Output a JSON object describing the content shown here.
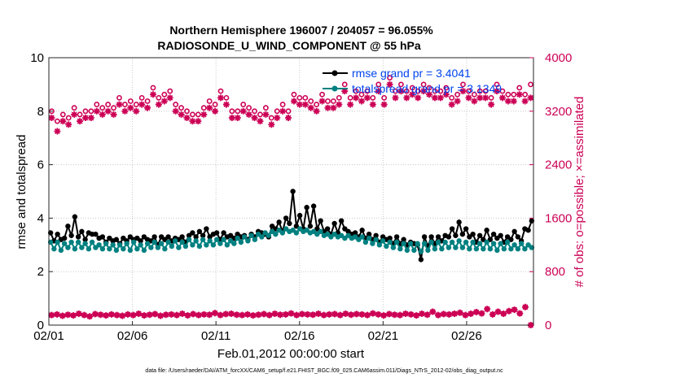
{
  "chart_data": {
    "type": "line",
    "title_line1": "Northern Hemisphere 196007 / 204057 = 96.055%",
    "title_line2": "RADIOSONDE_U_WIND_COMPONENT @ 55 hPa",
    "xlabel": "Feb.01,2012 00:00:00 start",
    "ylabel_left": "rmse and totalspread",
    "ylabel_right": "# of obs: o=possible; ×=assimilated",
    "footer": "data file: /Users/raeder/DAI/ATM_forcXX/CAM6_setup/f.e21.FHIST_BGC.f09_025.CAM6assim.011/Diags_NTrS_2012-02/obs_diag_output.nc",
    "x_ticks": [
      "02/01",
      "02/06",
      "02/11",
      "02/16",
      "02/21",
      "02/26"
    ],
    "x_tick_days": [
      0,
      5,
      10,
      15,
      20,
      25
    ],
    "xlim": [
      0,
      29
    ],
    "ylim_left": [
      0,
      10
    ],
    "yticks_left": [
      "0",
      "2",
      "4",
      "6",
      "8",
      "10"
    ],
    "ylim_right": [
      0,
      4000
    ],
    "yticks_right": [
      "0",
      "800",
      "1600",
      "2400",
      "3200",
      "4000"
    ],
    "legend": [
      {
        "name": "rmse grand pr = 3.4041",
        "color": "#000000"
      },
      {
        "name": "totalspread grand pr = 3.1349",
        "color": "#008080"
      }
    ],
    "colors": {
      "rmse": "#000000",
      "spread": "#008080",
      "obs": "#cc0055"
    },
    "series": [
      {
        "name": "rmse",
        "axis": "left",
        "marker": "dot",
        "values": [
          3.45,
          3.15,
          3.4,
          3.2,
          3.25,
          3.7,
          3.35,
          4.05,
          3.3,
          3.5,
          3.2,
          3.45,
          3.4,
          3.4,
          3.25,
          3.3,
          3.1,
          3.25,
          3.15,
          3.2,
          3.05,
          3.25,
          3.15,
          3.3,
          3.2,
          3.25,
          3.15,
          3.3,
          3.2,
          3.15,
          3.3,
          3.0,
          3.3,
          3.2,
          3.3,
          3.15,
          3.25,
          3.2,
          3.3,
          3.1,
          3.35,
          3.45,
          3.3,
          3.5,
          3.35,
          3.6,
          3.3,
          3.4,
          3.45,
          3.2,
          3.45,
          3.3,
          3.35,
          3.25,
          3.4,
          3.3,
          3.35,
          3.2,
          3.4,
          3.3,
          3.5,
          3.45,
          3.4,
          3.3,
          3.7,
          3.6,
          3.85,
          3.5,
          4.0,
          3.8,
          5.0,
          3.7,
          4.1,
          3.6,
          4.4,
          3.7,
          4.45,
          3.6,
          3.9,
          3.5,
          3.6,
          3.4,
          3.8,
          3.45,
          3.9,
          3.6,
          3.5,
          3.4,
          3.45,
          3.3,
          3.55,
          3.25,
          3.4,
          3.2,
          3.35,
          3.1,
          3.3,
          3.2,
          3.25,
          3.05,
          3.3,
          3.05,
          3.2,
          3.0,
          3.1,
          3.05,
          3.0,
          2.45,
          3.3,
          2.95,
          3.3,
          3.05,
          3.3,
          3.15,
          3.35,
          3.3,
          3.6,
          3.35,
          3.85,
          3.4,
          3.6,
          3.3,
          3.4,
          3.1,
          3.35,
          3.2,
          3.55,
          3.2,
          3.4,
          3.25,
          3.35,
          3.1,
          3.3,
          3.2,
          3.5,
          3.3,
          3.15,
          3.6,
          3.55,
          3.9
        ]
      },
      {
        "name": "totalspread",
        "axis": "left",
        "marker": "dot",
        "values": [
          3.1,
          2.85,
          3.1,
          2.8,
          3.05,
          2.9,
          3.1,
          2.85,
          3.1,
          2.9,
          3.05,
          2.85,
          3.1,
          2.9,
          3.0,
          2.85,
          3.05,
          2.85,
          3.0,
          2.8,
          3.0,
          2.85,
          3.05,
          2.8,
          3.1,
          2.85,
          3.0,
          2.8,
          3.05,
          2.9,
          3.1,
          2.9,
          3.05,
          2.85,
          3.1,
          2.95,
          3.15,
          2.9,
          3.1,
          2.95,
          3.2,
          3.0,
          3.15,
          2.95,
          3.2,
          3.0,
          3.15,
          3.0,
          3.2,
          3.05,
          3.2,
          3.0,
          3.15,
          3.05,
          3.25,
          3.1,
          3.3,
          3.15,
          3.35,
          3.2,
          3.4,
          3.3,
          3.45,
          3.35,
          3.5,
          3.4,
          3.55,
          3.45,
          3.6,
          3.5,
          3.55,
          3.45,
          3.6,
          3.5,
          3.55,
          3.45,
          3.5,
          3.4,
          3.5,
          3.35,
          3.4,
          3.3,
          3.4,
          3.3,
          3.35,
          3.25,
          3.35,
          3.25,
          3.3,
          3.2,
          3.3,
          3.1,
          3.25,
          3.05,
          3.2,
          3.0,
          3.15,
          2.95,
          3.1,
          2.9,
          3.1,
          2.85,
          3.05,
          2.8,
          3.05,
          2.8,
          3.05,
          2.75,
          3.05,
          2.8,
          3.1,
          2.85,
          3.1,
          2.85,
          3.1,
          2.9,
          3.1,
          2.9,
          3.15,
          2.9,
          3.1,
          2.85,
          3.1,
          2.85,
          3.05,
          2.85,
          3.1,
          2.85,
          3.05,
          2.8,
          3.05,
          2.85,
          3.1,
          2.85,
          3.0,
          2.85,
          3.05,
          2.85,
          3.0,
          2.9
        ]
      },
      {
        "name": "obs possible",
        "axis": "right",
        "marker": "circle",
        "values": [
          3200,
          3050,
          3150,
          3100,
          3250,
          3150,
          3200,
          3200,
          3300,
          3250,
          3300,
          3250,
          3400,
          3300,
          3350,
          3300,
          3400,
          3350,
          3550,
          3400,
          3450,
          3500,
          3300,
          3250,
          3200,
          3150,
          3150,
          3250,
          3350,
          3300,
          3500,
          3400,
          3200,
          3200,
          3300,
          3250,
          3200,
          3150,
          3250,
          3100,
          3200,
          3300,
          3200,
          3450,
          3400,
          3400,
          3350,
          3300,
          3450,
          3350,
          3350,
          3400,
          3600,
          3400,
          3500,
          3450,
          3500,
          3400,
          3600,
          3400,
          3700,
          3500,
          3600,
          3500,
          3550,
          3500,
          3600,
          3550,
          3500,
          3500,
          3550,
          3400,
          3450,
          3600,
          3500,
          3450,
          3500,
          3500,
          3400,
          3600,
          3500,
          3450,
          3450,
          3550,
          3450,
          3600
        ]
      },
      {
        "name": "obs assimilated",
        "axis": "right",
        "marker": "star",
        "values": [
          3100,
          2900,
          3050,
          3000,
          3150,
          3050,
          3100,
          3100,
          3200,
          3150,
          3200,
          3150,
          3300,
          3200,
          3250,
          3200,
          3300,
          3250,
          3450,
          3300,
          3350,
          3400,
          3200,
          3150,
          3100,
          3050,
          3050,
          3150,
          3250,
          3200,
          3400,
          3300,
          3100,
          3100,
          3200,
          3150,
          3100,
          3050,
          3150,
          3000,
          3100,
          3200,
          3100,
          3350,
          3300,
          3300,
          3250,
          3200,
          3350,
          3250,
          3250,
          3300,
          3500,
          3300,
          3400,
          3350,
          3400,
          3300,
          3500,
          3300,
          3600,
          3400,
          3500,
          3400,
          3450,
          3400,
          3500,
          3450,
          3400,
          3400,
          3450,
          3300,
          3350,
          3500,
          3400,
          3350,
          3400,
          3400,
          3300,
          3500,
          3400,
          3350,
          3350,
          3450,
          3350,
          3400
        ]
      },
      {
        "name": "obs possible (lower)",
        "axis": "right",
        "marker": "circle",
        "values": [
          150,
          160,
          140,
          155,
          145,
          170,
          150,
          130,
          165,
          155,
          145,
          160,
          150,
          140,
          160,
          150,
          170,
          145,
          155,
          165,
          140,
          155,
          160,
          150,
          170,
          145,
          165,
          150,
          160,
          155,
          180,
          150,
          165,
          170,
          155,
          150,
          160,
          145,
          155,
          165,
          150,
          170,
          155,
          160,
          175,
          150,
          165,
          160,
          155,
          170,
          150,
          160,
          165,
          150,
          170,
          155,
          165,
          160,
          150,
          175,
          160,
          145,
          165,
          155,
          150,
          170,
          160,
          145,
          170,
          155,
          200,
          150,
          165,
          160,
          170,
          185,
          150,
          170,
          195,
          175,
          240,
          160,
          200,
          170,
          210,
          230,
          175,
          270,
          0
        ]
      },
      {
        "name": "obs assimilated (lower)",
        "axis": "right",
        "marker": "star",
        "values": [
          150,
          160,
          140,
          155,
          145,
          170,
          150,
          130,
          165,
          155,
          145,
          160,
          150,
          140,
          160,
          150,
          170,
          145,
          155,
          165,
          140,
          155,
          160,
          150,
          170,
          145,
          165,
          150,
          160,
          155,
          180,
          150,
          165,
          170,
          155,
          150,
          160,
          145,
          155,
          165,
          150,
          170,
          155,
          160,
          175,
          150,
          165,
          160,
          155,
          170,
          150,
          160,
          165,
          150,
          170,
          155,
          165,
          160,
          150,
          175,
          160,
          145,
          165,
          155,
          150,
          170,
          160,
          145,
          170,
          155,
          200,
          150,
          165,
          160,
          170,
          185,
          150,
          170,
          195,
          175,
          240,
          160,
          200,
          170,
          210,
          230,
          175,
          270,
          0
        ]
      }
    ]
  }
}
